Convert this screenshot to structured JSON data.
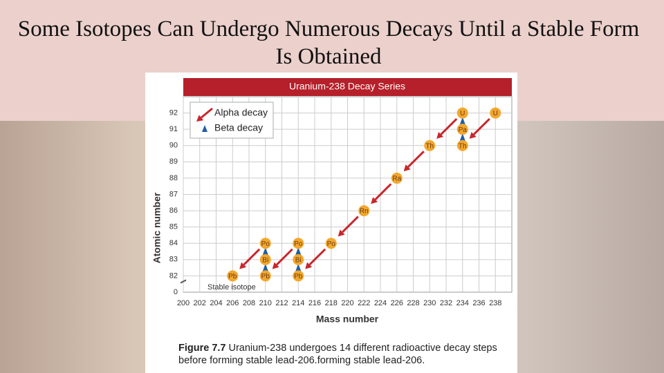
{
  "title": "Some Isotopes Can Undergo Numerous Decays Until a Stable Form Is Obtained",
  "chart_data": {
    "type": "scatter",
    "title": "Uranium-238 Decay Series",
    "xlabel": "Mass number",
    "ylabel": "Atomic number",
    "x": [
      238,
      234,
      234,
      234,
      230,
      226,
      222,
      218,
      214,
      214,
      214,
      210,
      210,
      210,
      206
    ],
    "values": [
      92,
      90,
      91,
      92,
      90,
      88,
      86,
      84,
      82,
      83,
      84,
      82,
      83,
      84,
      82
    ],
    "labels": [
      "U",
      "Th",
      "Pa",
      "U",
      "Th",
      "Ra",
      "Rn",
      "Po",
      "Pb",
      "Bi",
      "Po",
      "Pb",
      "Bi",
      "Po",
      "Pb"
    ],
    "color": "#f2a72e",
    "xlim": [
      200,
      240
    ],
    "xticks": [
      200,
      202,
      204,
      206,
      208,
      210,
      212,
      214,
      216,
      218,
      220,
      222,
      224,
      226,
      228,
      230,
      232,
      234,
      236,
      238
    ],
    "ylim": [
      81,
      93
    ],
    "yticks": [
      0,
      82,
      83,
      84,
      85,
      86,
      87,
      88,
      89,
      90,
      91,
      92
    ],
    "y_axis_break": true,
    "grid": true,
    "legend": [
      {
        "name": "Alpha decay",
        "color": "#c8262c"
      },
      {
        "name": "Beta decay",
        "color": "#1d5ea8"
      }
    ],
    "annotation": "Stable isotope"
  },
  "caption": {
    "label": "Figure 7.7",
    "text": "Uranium-238 undergoes 14 different radioactive decay steps before forming stable lead-206.forming stable lead-206."
  }
}
